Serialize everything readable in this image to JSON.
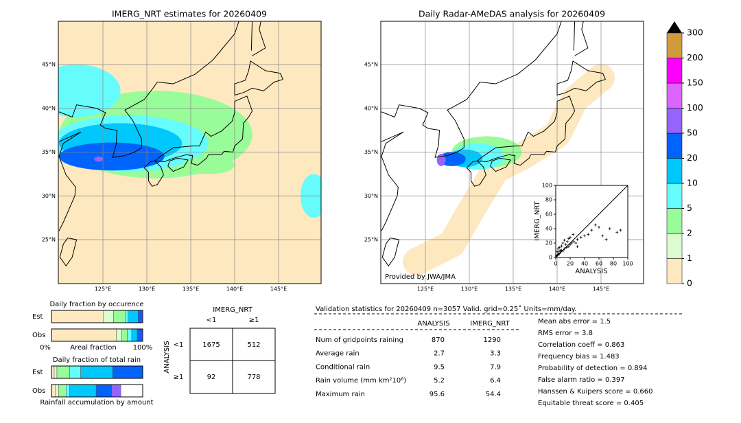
{
  "left_map": {
    "title": "IMERG_NRT estimates for 20260409",
    "lat_labels": [
      "45°N",
      "40°N",
      "35°N",
      "30°N",
      "25°N"
    ],
    "lon_labels": [
      "125°E",
      "130°E",
      "135°E",
      "140°E",
      "145°E"
    ]
  },
  "right_map": {
    "title": "Daily Radar-AMeDAS analysis for 20260409",
    "lat_labels": [
      "45°N",
      "40°N",
      "35°N",
      "30°N",
      "25°N"
    ],
    "lon_labels": [
      "125°E",
      "130°E",
      "135°E",
      "140°E",
      "145°E"
    ],
    "credit": "Provided by JWA/JMA"
  },
  "scatter": {
    "x_label": "ANALYSIS",
    "y_label": "IMERG_NRT",
    "xlim": [
      0,
      100
    ],
    "ylim": [
      0,
      100
    ],
    "xticks": [
      0,
      20,
      40,
      60,
      80,
      100
    ],
    "yticks": [
      0,
      20,
      40,
      60,
      80,
      100
    ],
    "x": [
      1,
      2,
      3,
      4,
      5,
      6,
      8,
      10,
      12,
      15,
      18,
      20,
      22,
      25,
      28,
      30,
      35,
      40,
      45,
      50,
      55,
      60,
      65,
      70,
      75,
      85,
      90,
      3,
      5,
      8,
      10,
      14,
      16,
      20,
      24,
      2,
      6,
      12,
      18,
      30
    ],
    "y": [
      2,
      3,
      4,
      6,
      5,
      8,
      10,
      9,
      12,
      14,
      15,
      18,
      20,
      22,
      20,
      25,
      28,
      30,
      32,
      38,
      45,
      42,
      30,
      25,
      40,
      35,
      38,
      12,
      14,
      16,
      20,
      18,
      22,
      28,
      32,
      8,
      10,
      24,
      26,
      15
    ]
  },
  "colorbar": {
    "levels": [
      0,
      1,
      2,
      5,
      10,
      20,
      50,
      100,
      150,
      200,
      300
    ],
    "colors": [
      "#fde8c0",
      "#dcfcd0",
      "#98fc98",
      "#66fcfc",
      "#00c8fc",
      "#0064fc",
      "#9664fc",
      "#dc64fc",
      "#fc00fc",
      "#d29b3a"
    ]
  },
  "occurrence": {
    "title": "Daily fraction by occurence",
    "rows": [
      "Est",
      "Obs"
    ],
    "axis_labels": [
      "0%",
      "Areal fraction",
      "100%"
    ],
    "est": [
      57,
      11,
      13,
      3,
      11,
      4,
      1
    ],
    "obs": [
      71,
      6,
      6,
      5,
      6,
      5,
      1
    ]
  },
  "total_rain": {
    "title": "Daily fraction of total rain",
    "rows": [
      "Est",
      "Obs"
    ],
    "footer": "Rainfall accumulation by amount",
    "est": [
      3,
      3,
      14,
      12,
      35,
      33,
      0
    ],
    "obs": [
      4,
      4,
      8,
      4,
      29,
      17,
      10
    ]
  },
  "contingency": {
    "title": "IMERG_NRT",
    "cols": [
      "<1",
      "≥1"
    ],
    "row_title": "ANALYSIS",
    "rows": [
      "<1",
      "≥1"
    ],
    "cells": [
      [
        1675,
        512
      ],
      [
        92,
        778
      ]
    ]
  },
  "stats": {
    "header": "Validation statistics for 20260409  n=3057 Valid. grid=0.25˚ Units=mm/day.",
    "columns": [
      "ANALYSIS",
      "IMERG_NRT"
    ],
    "rows": [
      [
        "Num of gridpoints raining",
        870,
        1290
      ],
      [
        "Average rain",
        2.7,
        3.3
      ],
      [
        "Conditional rain",
        9.5,
        7.9
      ],
      [
        "Rain volume (mm km²10⁶)",
        5.2,
        6.4
      ],
      [
        "Maximum rain",
        95.6,
        54.4
      ]
    ],
    "scores": [
      "Mean abs error =    1.5",
      "RMS error =    3.8",
      "Correlation coeff =  0.863",
      "Frequency bias =  1.483",
      "Probability of detection =  0.894",
      "False alarm ratio =  0.397",
      "Hanssen & Kuipers score =  0.660",
      "Equitable threat score =  0.405"
    ]
  }
}
